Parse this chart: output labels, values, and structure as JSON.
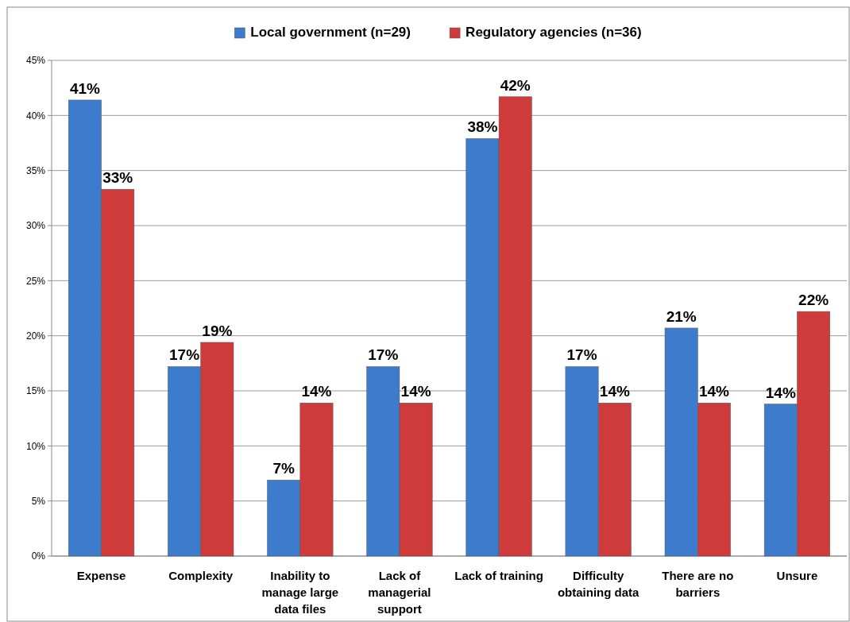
{
  "chart_data": {
    "type": "bar",
    "categories": [
      "Expense",
      "Complexity",
      "Inability to manage large data files",
      "Lack of managerial support",
      "Lack of training",
      "Difficulty obtaining data",
      "There are no barriers",
      "Unsure"
    ],
    "series": [
      {
        "name": "Local government (n=29)",
        "color": "#3d7ccc",
        "values": [
          41.4,
          17.2,
          6.9,
          17.2,
          37.9,
          17.2,
          20.7,
          13.8
        ],
        "value_labels": [
          "41%",
          "17%",
          "7%",
          "17%",
          "38%",
          "17%",
          "21%",
          "14%"
        ]
      },
      {
        "name": "Regulatory agencies (n=36)",
        "color": "#cf3b3b",
        "values": [
          33.3,
          19.4,
          13.9,
          13.9,
          41.7,
          13.9,
          13.9,
          22.2
        ],
        "value_labels": [
          "33%",
          "19%",
          "14%",
          "14%",
          "42%",
          "14%",
          "14%",
          "22%"
        ]
      }
    ],
    "ylim": [
      0,
      45
    ],
    "yticks": [
      {
        "value": 0,
        "label": "0%"
      },
      {
        "value": 5,
        "label": "5%"
      },
      {
        "value": 10,
        "label": "10%"
      },
      {
        "value": 15,
        "label": "15%"
      },
      {
        "value": 20,
        "label": "20%"
      },
      {
        "value": 25,
        "label": "25%"
      },
      {
        "value": 30,
        "label": "30%"
      },
      {
        "value": 35,
        "label": "35%"
      },
      {
        "value": 40,
        "label": "40%"
      },
      {
        "value": 45,
        "label": "45%"
      }
    ],
    "grid": "y",
    "legend": "top"
  }
}
